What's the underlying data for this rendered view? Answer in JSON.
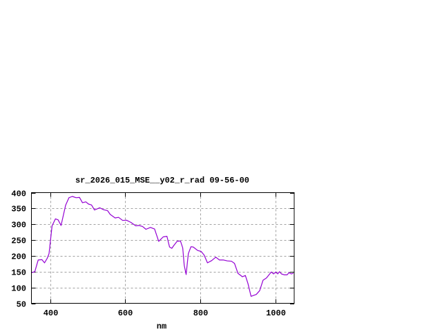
{
  "chart_data": {
    "type": "line",
    "title": "sr_2026_015_MSE__y02_r_rad 09-56-00",
    "xlabel": "nm",
    "ylabel": "",
    "xlim": [
      350,
      1050
    ],
    "ylim": [
      50,
      400
    ],
    "xticks": [
      400,
      600,
      800,
      1000
    ],
    "yticks": [
      50,
      100,
      150,
      200,
      250,
      300,
      350,
      400
    ],
    "grid": true,
    "legend": "none",
    "series": [
      {
        "color": "#9400d3",
        "x": [
          350,
          359,
          368,
          378,
          385,
          392,
          397,
          405,
          414,
          421,
          429,
          441,
          450,
          459,
          469,
          478,
          486,
          495,
          502,
          510,
          518,
          532,
          542,
          553,
          560,
          573,
          582,
          593,
          603,
          615,
          628,
          637,
          646,
          655,
          667,
          678,
          689,
          701,
          711,
          718,
          724,
          730,
          738,
          747,
          753,
          757,
          762,
          768,
          775,
          781,
          793,
          802,
          810,
          819,
          830,
          841,
          851,
          862,
          872,
          883,
          891,
          900,
          912,
          920,
          927,
          935,
          949,
          958,
          967,
          976,
          989,
          995,
          1001,
          1006,
          1011,
          1016,
          1024,
          1031,
          1036,
          1042,
          1048
        ],
        "y": [
          147,
          150,
          187,
          188,
          178,
          192,
          207,
          295,
          317,
          314,
          296,
          360,
          384,
          388,
          384,
          385,
          368,
          371,
          364,
          361,
          345,
          352,
          346,
          343,
          331,
          320,
          322,
          312,
          313,
          306,
          295,
          296,
          293,
          284,
          290,
          285,
          246,
          260,
          262,
          228,
          224,
          234,
          246,
          247,
          225,
          171,
          141,
          207,
          229,
          228,
          217,
          214,
          203,
          178,
          185,
          196,
          187,
          187,
          184,
          183,
          176,
          145,
          134,
          138,
          112,
          72,
          78,
          90,
          123,
          130,
          149,
          143,
          149,
          143,
          150,
          143,
          140,
          140,
          147,
          143,
          145
        ]
      }
    ]
  }
}
